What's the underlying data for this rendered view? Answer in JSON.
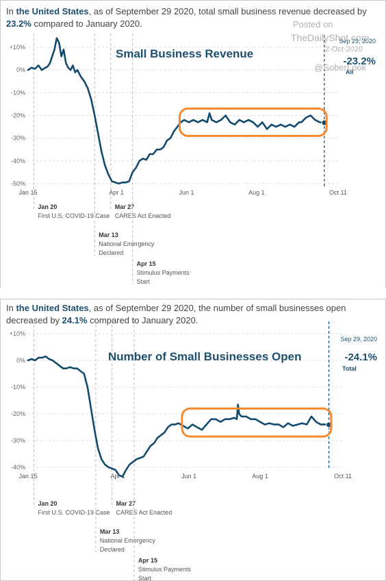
{
  "panels": [
    {
      "headline": {
        "p1": "In ",
        "place": "the United States",
        "p2": ", as of September 29 2020, total small business revenue decreased by ",
        "pct": "23.2%",
        "p3": " compared to January 2020."
      },
      "end_label": {
        "date": "Sep 29, 2020",
        "value": "-23.2%",
        "sub": "All"
      }
    },
    {
      "headline": {
        "p1": "In ",
        "place": "the United States",
        "p2": ", as of September 29 2020, the number of small businesses open decreased by ",
        "pct": "24.1%",
        "p3": " compared to January 2020."
      },
      "end_label": {
        "date": "Sep 29, 2020",
        "value": "-24.1%",
        "sub": "Total"
      }
    }
  ],
  "watermark": {
    "line1": "Posted on",
    "line2": "TheDailyShot.com",
    "line3": "2-Oct-2020",
    "line4": "@SoberLook"
  },
  "colors": {
    "line": "#124b6e",
    "highlight": "#f7892e",
    "accent": "#1d4f6e",
    "grid": "#dddddd",
    "event": "#bdbdbd"
  },
  "chart_data": [
    {
      "type": "line",
      "title": "Small Business Revenue",
      "xlabel": "",
      "ylabel": "",
      "x_ticks": [
        "Jan 15",
        "Apr 1",
        "Jun 1",
        "Aug 1",
        "Oct 11"
      ],
      "y_ticks": [
        "+10%",
        "0%",
        "-10%",
        "-20%",
        "-30%",
        "-40%",
        "-50%"
      ],
      "ylim": [
        -50,
        12
      ],
      "xlim": [
        "2020-01-15",
        "2020-10-11"
      ],
      "grid": true,
      "annotations": [
        {
          "date": "2020-01-20",
          "label": "Jan 20",
          "text": "First U.S. COVID-19 Case"
        },
        {
          "date": "2020-03-13",
          "label": "Mar 13",
          "text": "National Emergency Declared"
        },
        {
          "date": "2020-03-27",
          "label": "Mar 27",
          "text": "CARES Act Enacted"
        },
        {
          "date": "2020-04-15",
          "label": "Apr 15",
          "text": "Stimulus Payments Start"
        }
      ],
      "highlight": {
        "from": "2020-05-26",
        "to": "2020-10-01",
        "ymin": -29,
        "ymax": -17
      },
      "series": [
        {
          "x": [
            "2020-01-15",
            "2020-01-18",
            "2020-01-21",
            "2020-01-24",
            "2020-01-27",
            "2020-01-30",
            "2020-02-01",
            "2020-02-03",
            "2020-02-05",
            "2020-02-07",
            "2020-02-09",
            "2020-02-11",
            "2020-02-13",
            "2020-02-15",
            "2020-02-17",
            "2020-02-19",
            "2020-02-21",
            "2020-02-23",
            "2020-02-25",
            "2020-02-27",
            "2020-03-01",
            "2020-03-04",
            "2020-03-07",
            "2020-03-10",
            "2020-03-13",
            "2020-03-16",
            "2020-03-19",
            "2020-03-22",
            "2020-03-25",
            "2020-03-28",
            "2020-03-31",
            "2020-04-03",
            "2020-04-06",
            "2020-04-09",
            "2020-04-12",
            "2020-04-15",
            "2020-04-18",
            "2020-04-21",
            "2020-04-24",
            "2020-04-27",
            "2020-04-30",
            "2020-05-03",
            "2020-05-06",
            "2020-05-09",
            "2020-05-12",
            "2020-05-15",
            "2020-05-18",
            "2020-05-21",
            "2020-05-24",
            "2020-05-27",
            "2020-05-30",
            "2020-06-03",
            "2020-06-07",
            "2020-06-11",
            "2020-06-15",
            "2020-06-19",
            "2020-06-21",
            "2020-06-23",
            "2020-06-27",
            "2020-07-01",
            "2020-07-05",
            "2020-07-09",
            "2020-07-13",
            "2020-07-17",
            "2020-07-21",
            "2020-07-25",
            "2020-07-29",
            "2020-08-02",
            "2020-08-06",
            "2020-08-10",
            "2020-08-14",
            "2020-08-18",
            "2020-08-22",
            "2020-08-26",
            "2020-08-30",
            "2020-09-03",
            "2020-09-07",
            "2020-09-09",
            "2020-09-13",
            "2020-09-17",
            "2020-09-21",
            "2020-09-25",
            "2020-09-29"
          ],
          "y": [
            0,
            1,
            0.5,
            2,
            0,
            1,
            1.5,
            3,
            6,
            9,
            14,
            12,
            6,
            9,
            3,
            1,
            0,
            2,
            -1,
            0,
            -3,
            -5,
            -8,
            -13,
            -20,
            -28,
            -36,
            -42,
            -46,
            -49,
            -49.5,
            -50,
            -49.5,
            -49.5,
            -49,
            -45,
            -43,
            -40,
            -39,
            -39.5,
            -37,
            -37,
            -35,
            -35,
            -34,
            -31,
            -30,
            -27,
            -25,
            -23,
            -22,
            -23,
            -22,
            -23,
            -22,
            -23,
            -19,
            -22,
            -23,
            -22,
            -20,
            -23,
            -24,
            -22,
            -23,
            -22,
            -23,
            -25,
            -23,
            -26,
            -24,
            -25,
            -24,
            -25,
            -24,
            -25,
            -23,
            -23,
            -21,
            -20,
            -22,
            -23,
            -23.2
          ]
        }
      ]
    },
    {
      "type": "line",
      "title": "Number of Small Businesses Open",
      "xlabel": "",
      "ylabel": "",
      "x_ticks": [
        "Jan 15",
        "Apr 1",
        "Jun 1",
        "Aug 1",
        "Oct 11"
      ],
      "y_ticks": [
        "+10%",
        "0%",
        "-10%",
        "-20%",
        "-30%",
        "-40%"
      ],
      "ylim": [
        -45,
        10
      ],
      "xlim": [
        "2020-01-15",
        "2020-10-11"
      ],
      "grid": true,
      "annotations": [
        {
          "date": "2020-01-20",
          "label": "Jan 20",
          "text": "First U.S. COVID-19 Case"
        },
        {
          "date": "2020-03-13",
          "label": "Mar 13",
          "text": "National Emergency Declared"
        },
        {
          "date": "2020-03-27",
          "label": "Mar 27",
          "text": "CARES Act Enacted"
        },
        {
          "date": "2020-04-15",
          "label": "Apr 15",
          "text": "Stimulus Payments Start"
        }
      ],
      "highlight": {
        "from": "2020-05-26",
        "to": "2020-10-01",
        "ymin": -28.5,
        "ymax": -18
      },
      "series": [
        {
          "x": [
            "2020-01-15",
            "2020-01-18",
            "2020-01-21",
            "2020-01-24",
            "2020-01-27",
            "2020-01-30",
            "2020-02-02",
            "2020-02-05",
            "2020-02-08",
            "2020-02-11",
            "2020-02-14",
            "2020-02-17",
            "2020-02-20",
            "2020-02-23",
            "2020-02-26",
            "2020-02-29",
            "2020-03-03",
            "2020-03-06",
            "2020-03-09",
            "2020-03-12",
            "2020-03-15",
            "2020-03-18",
            "2020-03-21",
            "2020-03-24",
            "2020-03-27",
            "2020-03-30",
            "2020-04-02",
            "2020-04-05",
            "2020-04-08",
            "2020-04-11",
            "2020-04-14",
            "2020-04-17",
            "2020-04-20",
            "2020-04-23",
            "2020-04-26",
            "2020-04-29",
            "2020-05-02",
            "2020-05-05",
            "2020-05-08",
            "2020-05-11",
            "2020-05-14",
            "2020-05-17",
            "2020-05-20",
            "2020-05-23",
            "2020-05-27",
            "2020-05-31",
            "2020-06-04",
            "2020-06-08",
            "2020-06-12",
            "2020-06-16",
            "2020-06-20",
            "2020-06-24",
            "2020-06-28",
            "2020-07-02",
            "2020-07-06",
            "2020-07-10",
            "2020-07-12",
            "2020-07-13",
            "2020-07-14",
            "2020-07-16",
            "2020-07-20",
            "2020-07-24",
            "2020-07-28",
            "2020-08-01",
            "2020-08-05",
            "2020-08-09",
            "2020-08-13",
            "2020-08-17",
            "2020-08-21",
            "2020-08-25",
            "2020-08-29",
            "2020-09-02",
            "2020-09-06",
            "2020-09-10",
            "2020-09-14",
            "2020-09-18",
            "2020-09-22",
            "2020-09-26",
            "2020-09-29"
          ],
          "y": [
            0,
            0.5,
            0,
            1,
            1,
            1.5,
            0.5,
            0,
            -1,
            -2,
            -3,
            -3,
            -2.5,
            -3,
            -3,
            -4,
            -5,
            -10,
            -18,
            -26,
            -33,
            -37,
            -39,
            -40,
            -40.5,
            -41,
            -43,
            -43.5,
            -41,
            -39,
            -38,
            -37,
            -36.5,
            -36,
            -34,
            -32,
            -31,
            -29,
            -28,
            -27,
            -25,
            -24,
            -24,
            -23.5,
            -24.5,
            -25.5,
            -24,
            -25,
            -26,
            -24,
            -22,
            -22,
            -23,
            -22,
            -22,
            -21.5,
            -22,
            -16.5,
            -20,
            -21,
            -21,
            -22,
            -22,
            -23,
            -24,
            -23.5,
            -24,
            -24,
            -25,
            -23.5,
            -24.5,
            -24,
            -23.5,
            -24,
            -21,
            -23,
            -24,
            -24,
            -24.1
          ]
        }
      ]
    }
  ]
}
